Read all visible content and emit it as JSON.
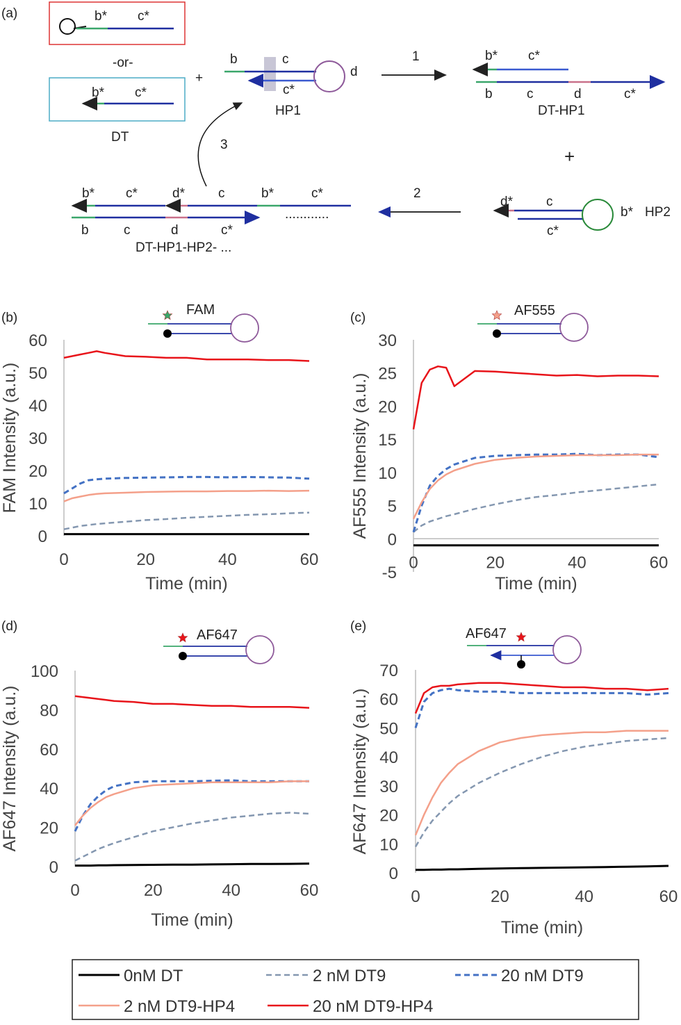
{
  "colors": {
    "zero": "#000000",
    "dt9_2": "#8497b0",
    "dt9_20": "#4472c4",
    "hp4_2": "#f4a08a",
    "hp4_20": "#e8141a",
    "green": "#3aa66a",
    "blue": "#1f2fa0",
    "pink": "#c9708a",
    "purple": "#8e5a9a",
    "loop_green": "#2a8a3a"
  },
  "panel_a": {
    "label": "(a)",
    "dt_box1": {
      "b": "b*",
      "c": "c*"
    },
    "or": "-or-",
    "dt_box2": {
      "b": "b*",
      "c": "c*"
    },
    "dt_label": "DT",
    "plus1": "+",
    "hp1": {
      "b": "b",
      "c": "c",
      "cstar": "c*",
      "d": "d",
      "name": "HP1"
    },
    "step1": "1",
    "dt_hp1": {
      "bstar": "b*",
      "cstar": "c*",
      "b": "b",
      "c": "c",
      "d": "d",
      "cstar2": "c*",
      "name": "DT-HP1"
    },
    "plus2": "+",
    "hp2": {
      "dstar": "d*",
      "c": "c",
      "cstar": "c*",
      "bstar": "b*",
      "name": "HP2"
    },
    "step2": "2",
    "step3": "3",
    "chain": {
      "top": [
        "b*",
        "c*",
        "d*",
        "c",
        "b*",
        "c*"
      ],
      "bottom": [
        "b",
        "c",
        "d",
        "c*"
      ],
      "dots": "............",
      "name": "DT-HP1-HP2- ..."
    }
  },
  "chart_data": [
    {
      "panel": "(b)",
      "type": "line",
      "probe": "FAM",
      "xlabel": "Time (min)",
      "ylabel": "FAM Intensity (a.u.)",
      "xlim": [
        0,
        60
      ],
      "ylim": [
        0,
        60
      ],
      "xticks": [
        0,
        20,
        40,
        60
      ],
      "yticks": [
        0,
        10,
        20,
        30,
        40,
        50,
        60
      ],
      "x": [
        0,
        2,
        4,
        6,
        8,
        10,
        15,
        20,
        25,
        30,
        35,
        40,
        45,
        50,
        55,
        60
      ],
      "series": [
        {
          "name": "0nM DT",
          "values": [
            0.5,
            0.5,
            0.5,
            0.5,
            0.5,
            0.5,
            0.5,
            0.5,
            0.5,
            0.5,
            0.5,
            0.5,
            0.5,
            0.5,
            0.5,
            0.5
          ]
        },
        {
          "name": "2 nM DT9",
          "values": [
            2,
            2.5,
            3,
            3.3,
            3.6,
            3.8,
            4.3,
            4.8,
            5.1,
            5.5,
            5.8,
            6.1,
            6.4,
            6.6,
            6.9,
            7.1
          ]
        },
        {
          "name": "20 nM DT9",
          "values": [
            13,
            14.5,
            16,
            17,
            17.3,
            17.5,
            17.7,
            17.8,
            17.9,
            18,
            18,
            17.9,
            18,
            17.9,
            17.8,
            17.5
          ]
        },
        {
          "name": "2 nM DT9-HP4",
          "values": [
            10.5,
            11.5,
            12,
            12.5,
            12.8,
            13,
            13.2,
            13.4,
            13.5,
            13.6,
            13.6,
            13.7,
            13.7,
            13.8,
            13.7,
            13.8
          ]
        },
        {
          "name": "20 nM DT9-HP4",
          "values": [
            54.5,
            55,
            55.5,
            56,
            56.5,
            56,
            55,
            54.8,
            54.5,
            54.5,
            54,
            54,
            54,
            53.8,
            53.8,
            53.5
          ]
        }
      ]
    },
    {
      "panel": "(c)",
      "type": "line",
      "probe": "AF555",
      "xlabel": "Time (min)",
      "ylabel": "AF555 Intensity (a.u.)",
      "xlim": [
        0,
        60
      ],
      "ylim": [
        -5,
        30
      ],
      "xticks": [
        0,
        20,
        40,
        60
      ],
      "yticks": [
        -5,
        0,
        5,
        10,
        15,
        20,
        25,
        30
      ],
      "x": [
        0,
        2,
        4,
        6,
        8,
        10,
        15,
        20,
        25,
        30,
        35,
        40,
        45,
        50,
        55,
        60
      ],
      "series": [
        {
          "name": "0nM DT",
          "values": [
            -1,
            -1,
            -1,
            -1,
            -1,
            -1,
            -1,
            -1,
            -1,
            -1,
            -1,
            -1,
            -1,
            -1,
            -1,
            -1
          ]
        },
        {
          "name": "2 nM DT9",
          "values": [
            1,
            2,
            2.6,
            3,
            3.4,
            3.7,
            4.5,
            5.2,
            5.8,
            6.3,
            6.6,
            7,
            7.3,
            7.6,
            7.9,
            8.2
          ]
        },
        {
          "name": "20 nM DT9",
          "values": [
            1,
            5,
            8,
            9.5,
            10.5,
            11.2,
            12.2,
            12.5,
            12.6,
            12.7,
            12.7,
            12.8,
            12.6,
            12.7,
            12.7,
            12.3
          ]
        },
        {
          "name": "2 nM DT9-HP4",
          "values": [
            3,
            5.5,
            7.5,
            8.8,
            9.7,
            10.3,
            11.3,
            11.9,
            12.2,
            12.4,
            12.5,
            12.6,
            12.6,
            12.6,
            12.7,
            12.7
          ]
        },
        {
          "name": "20 nM DT9-HP4",
          "values": [
            16.5,
            23.5,
            25.5,
            26,
            25.8,
            23,
            25.3,
            25.2,
            25,
            24.8,
            24.6,
            24.7,
            24.5,
            24.6,
            24.6,
            24.5
          ]
        }
      ]
    },
    {
      "panel": "(d)",
      "type": "line",
      "probe": "AF647",
      "xlabel": "Time (min)",
      "ylabel": "AF647 Intensity (a.u.)",
      "xlim": [
        0,
        60
      ],
      "ylim": [
        0,
        100
      ],
      "xticks": [
        0,
        20,
        40,
        60
      ],
      "yticks": [
        0,
        20,
        40,
        60,
        80,
        100
      ],
      "x": [
        0,
        2,
        4,
        6,
        8,
        10,
        15,
        20,
        25,
        30,
        35,
        40,
        45,
        50,
        55,
        60
      ],
      "series": [
        {
          "name": "0nM DT",
          "values": [
            0.5,
            0.5,
            0.5,
            0.6,
            0.6,
            0.7,
            0.8,
            0.9,
            1,
            1,
            1.1,
            1.2,
            1.3,
            1.3,
            1.4,
            1.5
          ]
        },
        {
          "name": "2 nM DT9",
          "values": [
            3,
            5,
            7,
            9,
            10.5,
            12,
            15,
            18,
            20,
            22,
            23.5,
            25,
            26,
            27,
            27.5,
            27
          ]
        },
        {
          "name": "20 nM DT9",
          "values": [
            18,
            26,
            32,
            36,
            39,
            41,
            43,
            43.5,
            43.5,
            43.5,
            43.8,
            44,
            43.5,
            43.5,
            43.5,
            43.5
          ]
        },
        {
          "name": "2 nM DT9-HP4",
          "values": [
            21,
            26,
            30,
            33,
            35.5,
            37,
            40,
            41.5,
            42,
            42.5,
            43,
            43,
            43,
            43,
            43.5,
            43.5
          ]
        },
        {
          "name": "20 nM DT9-HP4",
          "values": [
            87,
            86.5,
            86,
            85.5,
            85,
            84.5,
            84,
            83,
            83,
            82.5,
            82,
            82,
            81.5,
            81.5,
            81.5,
            81
          ]
        }
      ]
    },
    {
      "panel": "(e)",
      "type": "line",
      "probe": "AF647",
      "xlabel": "Time (min)",
      "ylabel": "AF647 Intensity (a.u.)",
      "xlim": [
        0,
        60
      ],
      "ylim": [
        0,
        70
      ],
      "xticks": [
        0,
        20,
        40,
        60
      ],
      "yticks": [
        0,
        10,
        20,
        30,
        40,
        50,
        60,
        70
      ],
      "x": [
        0,
        2,
        4,
        6,
        8,
        10,
        15,
        20,
        25,
        30,
        35,
        40,
        45,
        50,
        55,
        60
      ],
      "series": [
        {
          "name": "0nM DT",
          "values": [
            1,
            1,
            1.1,
            1.1,
            1.2,
            1.2,
            1.4,
            1.5,
            1.6,
            1.7,
            1.8,
            1.9,
            2,
            2.1,
            2.2,
            2.4
          ]
        },
        {
          "name": "2 nM DT9",
          "values": [
            9,
            14,
            18,
            21,
            24,
            26.5,
            31,
            34.5,
            37.5,
            40,
            42,
            43.5,
            44.5,
            45.5,
            46,
            46.5
          ]
        },
        {
          "name": "20 nM DT9",
          "values": [
            50,
            59,
            62,
            63,
            63.5,
            63,
            62.5,
            62.5,
            62,
            62,
            62,
            62,
            62,
            62,
            61.5,
            62
          ]
        },
        {
          "name": "2 nM DT9-HP4",
          "values": [
            13,
            20,
            26,
            31,
            34.5,
            37.5,
            42,
            45,
            46.5,
            47.5,
            48,
            48.5,
            48.5,
            49,
            49,
            49
          ]
        },
        {
          "name": "20 nM DT9-HP4",
          "values": [
            55,
            62,
            64,
            64.5,
            64.5,
            65,
            65.5,
            65.5,
            65,
            64.5,
            64,
            64,
            63.5,
            63.5,
            63,
            63.5
          ]
        }
      ]
    }
  ],
  "legend": [
    {
      "label": "0nM DT",
      "style": "solid"
    },
    {
      "label": "2 nM DT9",
      "style": "dashed"
    },
    {
      "label": "20 nM DT9",
      "style": "dashed"
    },
    {
      "label": "2 nM DT9-HP4",
      "style": "solid"
    },
    {
      "label": "20 nM DT9-HP4",
      "style": "solid"
    }
  ]
}
